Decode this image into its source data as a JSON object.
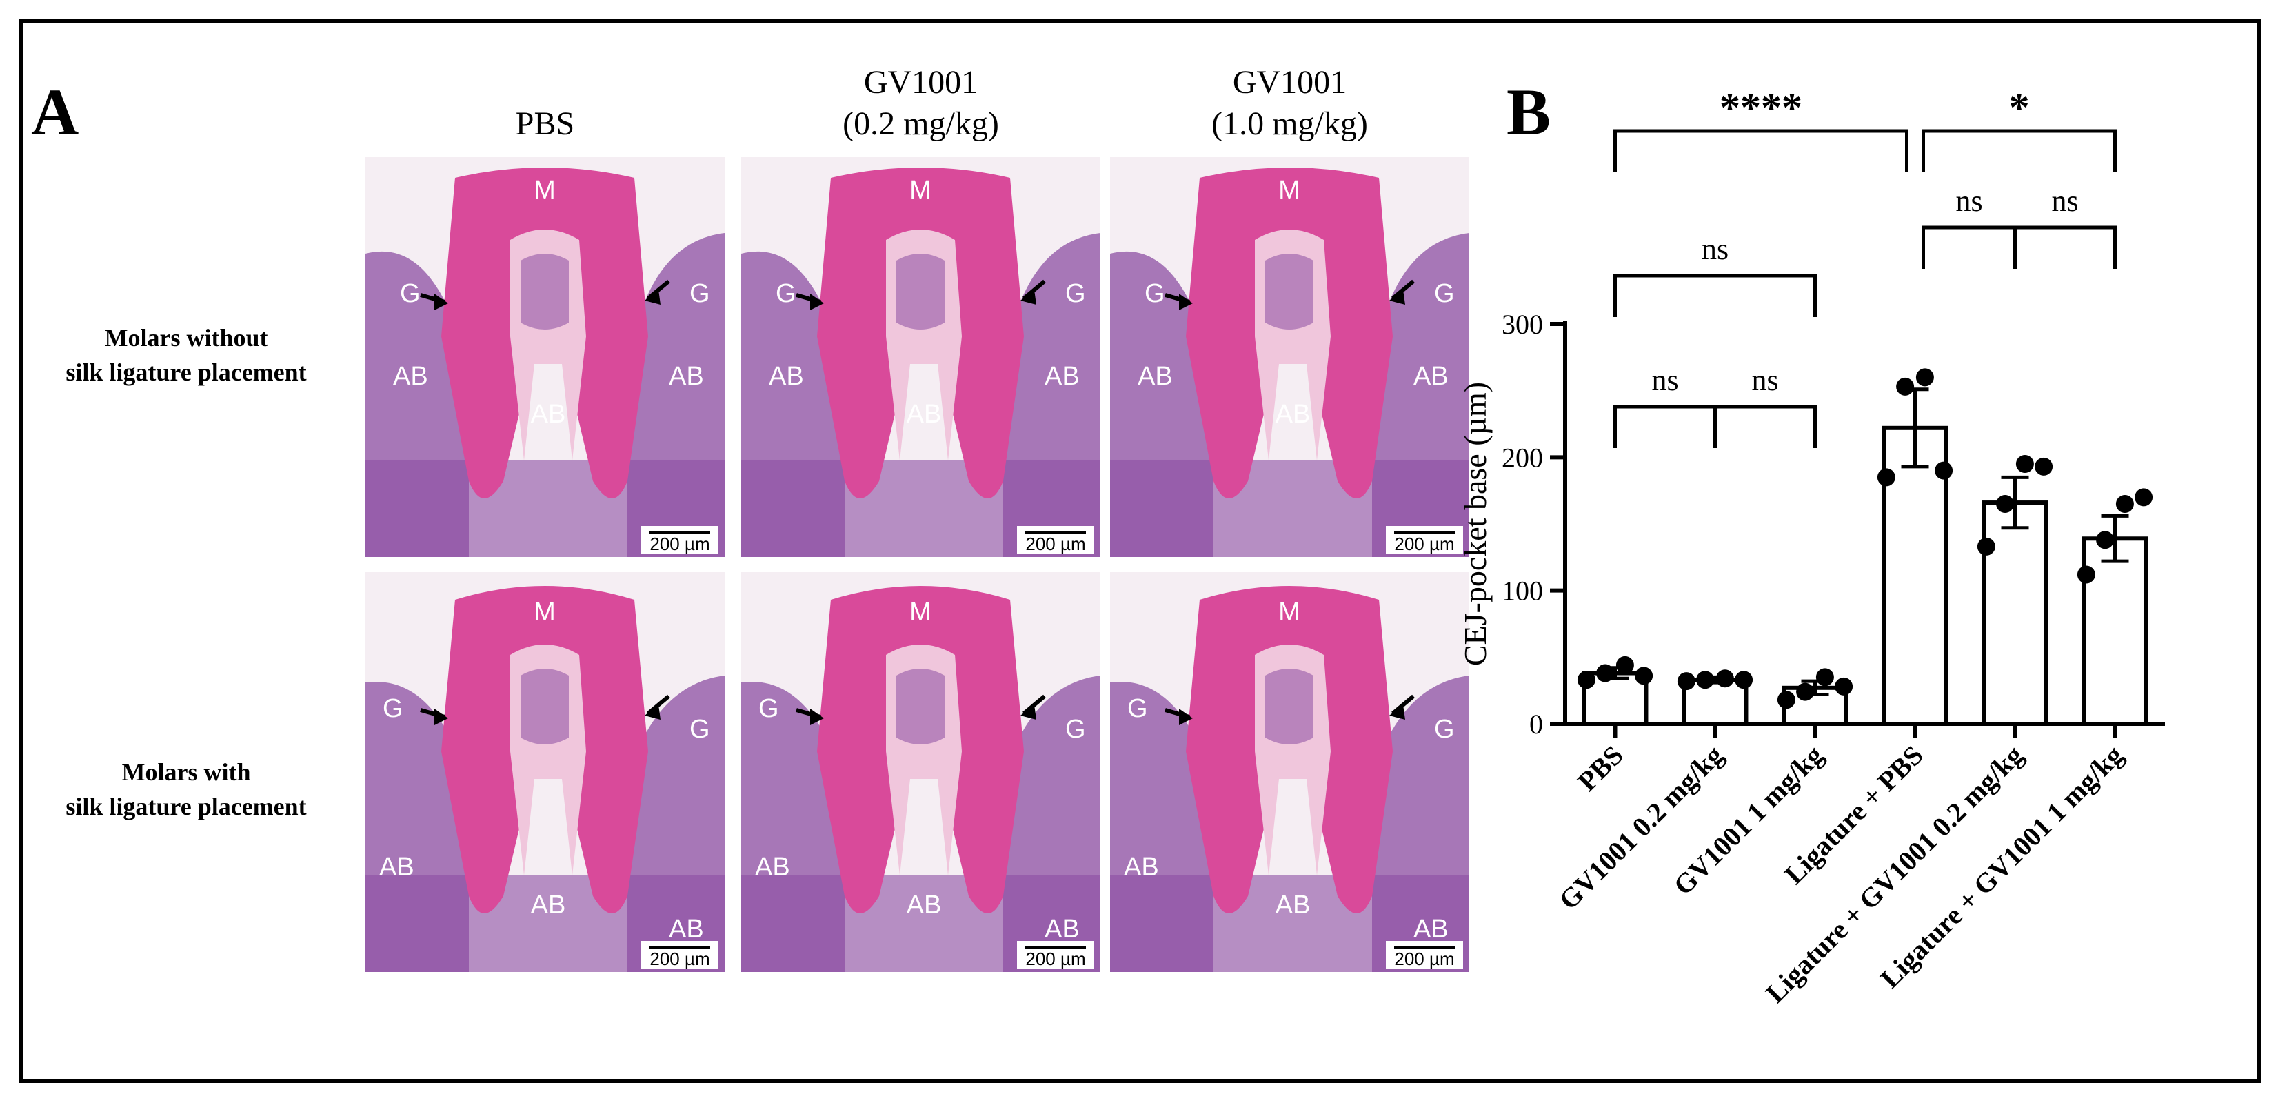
{
  "panel_a": {
    "letter": "A",
    "columns": [
      "PBS",
      "GV1001\n(0.2 mg/kg)",
      "GV1001\n(1.0 mg/kg)"
    ],
    "rows": [
      {
        "label": "Molars without\nsilk ligature placement"
      },
      {
        "label": "Molars with\nsilk ligature placement"
      }
    ],
    "scale_bar": "200 µm",
    "tissue_labels": {
      "molar": "M",
      "gingiva": "G",
      "alveolar_bone": "AB"
    },
    "colors": {
      "stain_pink": "#d94a9a",
      "stain_light": "#f0c6dc",
      "tissue_purple": "#8c4fa3",
      "background": "#f5eef3"
    }
  },
  "panel_b": {
    "letter": "B",
    "significance": [
      {
        "label": "****"
      },
      {
        "label": "*"
      },
      {
        "label": "ns"
      },
      {
        "label": "ns"
      },
      {
        "label": "ns"
      },
      {
        "label": "ns"
      },
      {
        "label": "ns"
      }
    ]
  },
  "chart_data": {
    "type": "bar",
    "categories": [
      "PBS",
      "GV1001 0.2 mg/kg",
      "GV1001 1 mg/kg",
      "Ligature + PBS",
      "Ligature + GV1001 0.2 mg/kg",
      "Ligature + GV1001 1 mg/kg"
    ],
    "values": [
      38,
      33,
      27,
      222,
      166,
      139
    ],
    "errors": [
      4,
      2,
      5,
      29,
      19,
      17
    ],
    "points": [
      [
        33,
        38,
        44,
        36
      ],
      [
        32,
        33,
        34,
        33
      ],
      [
        18,
        24,
        35,
        28
      ],
      [
        185,
        253,
        260,
        190
      ],
      [
        133,
        165,
        195,
        193
      ],
      [
        112,
        138,
        165,
        170
      ]
    ],
    "ylabel": "CEJ-pocket base (µm)",
    "xlabel": "",
    "ylim": [
      0,
      300
    ],
    "yticks": [
      0,
      100,
      200,
      300
    ],
    "comparisons": [
      {
        "from": 0,
        "to": 3,
        "label": "****"
      },
      {
        "from": 3,
        "to": 5,
        "label": "*"
      },
      {
        "from": 3,
        "to": 4,
        "label": "ns"
      },
      {
        "from": 4,
        "to": 5,
        "label": "ns"
      },
      {
        "from": 0,
        "to": 2,
        "label": "ns"
      },
      {
        "from": 0,
        "to": 1,
        "label": "ns"
      },
      {
        "from": 1,
        "to": 2,
        "label": "ns"
      }
    ],
    "grid": false
  }
}
